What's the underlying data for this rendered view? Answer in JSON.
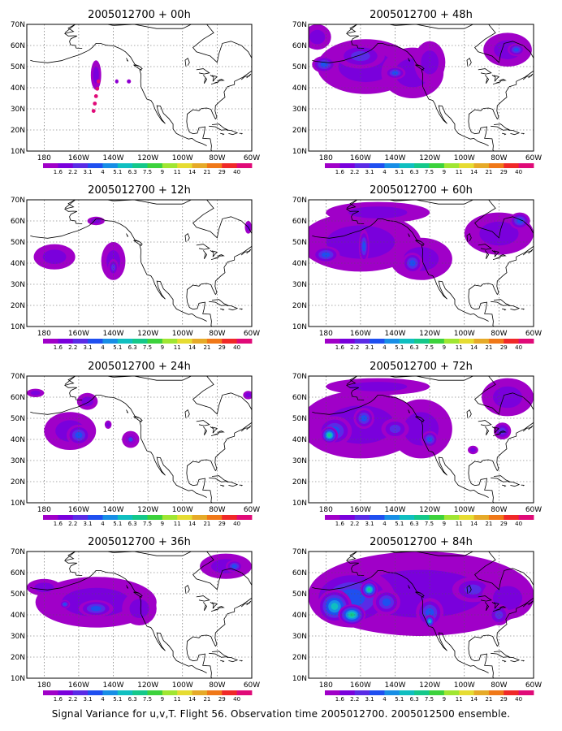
{
  "caption": "Signal Variance for u,v,T. Flight 56. Observation time 2005012700. 2005012500 ensemble.",
  "colorbar": {
    "labels": [
      "1.6",
      "2.2",
      "3.1",
      "4",
      "5.1",
      "6.3",
      "7.5",
      "9",
      "11",
      "14",
      "21",
      "29",
      "40"
    ],
    "colors": [
      "#a000c8",
      "#7a00dc",
      "#5a2be6",
      "#1f4ff0",
      "#178ee6",
      "#10bfc0",
      "#14c88a",
      "#3cd23c",
      "#a0e632",
      "#e6dc32",
      "#e6aa28",
      "#f07818",
      "#f02828",
      "#e00a78"
    ]
  },
  "chart_data": [
    {
      "type": "heatmap",
      "title": "2005012700 + 00h",
      "x_ticks": [
        "180",
        "160W",
        "140W",
        "120W",
        "100W",
        "80W",
        "60W"
      ],
      "y_ticks": [
        "10N",
        "20N",
        "30N",
        "40N",
        "50N",
        "60N",
        "70N"
      ],
      "xlim": [
        -190,
        -60
      ],
      "ylim": [
        10,
        70
      ],
      "grid": true,
      "blobs": [
        {
          "lon": -150,
          "lat": 46,
          "rlon": 3,
          "rlat": 7,
          "level": 1
        },
        {
          "lon": -150,
          "lat": 36,
          "rlon": 1.4,
          "rlat": 7,
          "level": 13
        },
        {
          "lon": -138,
          "lat": 43,
          "rlon": 1,
          "rlat": 1,
          "level": 1
        },
        {
          "lon": -131,
          "lat": 43,
          "rlon": 1.2,
          "rlat": 1,
          "level": 1
        }
      ]
    },
    {
      "type": "heatmap",
      "title": "2005012700 + 48h",
      "x_ticks": [
        "180",
        "160W",
        "140W",
        "120W",
        "100W",
        "80W",
        "60W"
      ],
      "y_ticks": [
        "10N",
        "20N",
        "30N",
        "40N",
        "50N",
        "60N",
        "70N"
      ],
      "xlim": [
        -190,
        -60
      ],
      "ylim": [
        10,
        70
      ],
      "grid": true,
      "blobs": [
        {
          "lon": -157,
          "lat": 50,
          "rlon": 28,
          "rlat": 13,
          "level": 1
        },
        {
          "lon": -130,
          "lat": 47,
          "rlon": 18,
          "rlat": 12,
          "level": 1
        },
        {
          "lon": -120,
          "lat": 52,
          "rlon": 9,
          "rlat": 10,
          "level": 1
        },
        {
          "lon": -160,
          "lat": 55,
          "rlon": 14,
          "rlat": 6,
          "level": 2
        },
        {
          "lon": -140,
          "lat": 47,
          "rlon": 6,
          "rlat": 3,
          "level": 3
        },
        {
          "lon": -181,
          "lat": 51,
          "rlon": 7,
          "rlat": 4,
          "level": 3
        },
        {
          "lon": -75,
          "lat": 58,
          "rlon": 14,
          "rlat": 8,
          "level": 1
        },
        {
          "lon": -70,
          "lat": 58,
          "rlon": 5,
          "rlat": 3,
          "level": 3
        },
        {
          "lon": -185,
          "lat": 64,
          "rlon": 8,
          "rlat": 6,
          "level": 1
        }
      ]
    },
    {
      "type": "heatmap",
      "title": "2005012700 + 12h",
      "x_ticks": [
        "180",
        "160W",
        "140W",
        "120W",
        "100W",
        "80W",
        "60W"
      ],
      "y_ticks": [
        "10N",
        "20N",
        "30N",
        "40N",
        "50N",
        "60N",
        "70N"
      ],
      "xlim": [
        -190,
        -60
      ],
      "ylim": [
        10,
        70
      ],
      "grid": true,
      "blobs": [
        {
          "lon": -174,
          "lat": 43,
          "rlon": 12,
          "rlat": 6,
          "level": 1
        },
        {
          "lon": -140,
          "lat": 41,
          "rlon": 7,
          "rlat": 9,
          "level": 1
        },
        {
          "lon": -140,
          "lat": 38,
          "rlon": 3,
          "rlat": 4,
          "level": 2
        },
        {
          "lon": -150,
          "lat": 60,
          "rlon": 5,
          "rlat": 2,
          "level": 1
        },
        {
          "lon": -62,
          "lat": 57,
          "rlon": 2,
          "rlat": 3,
          "level": 1
        }
      ]
    },
    {
      "type": "heatmap",
      "title": "2005012700 + 60h",
      "x_ticks": [
        "180",
        "160W",
        "140W",
        "120W",
        "100W",
        "80W",
        "60W"
      ],
      "y_ticks": [
        "10N",
        "20N",
        "30N",
        "40N",
        "50N",
        "60N",
        "70N"
      ],
      "xlim": [
        -190,
        -60
      ],
      "ylim": [
        10,
        70
      ],
      "grid": true,
      "blobs": [
        {
          "lon": -160,
          "lat": 50,
          "rlon": 35,
          "rlat": 14,
          "level": 1
        },
        {
          "lon": -125,
          "lat": 42,
          "rlon": 18,
          "rlat": 10,
          "level": 1
        },
        {
          "lon": -180,
          "lat": 44,
          "rlon": 8,
          "rlat": 4,
          "level": 3
        },
        {
          "lon": -158,
          "lat": 48,
          "rlon": 3,
          "rlat": 8,
          "level": 3
        },
        {
          "lon": -130,
          "lat": 40,
          "rlon": 6,
          "rlat": 5,
          "level": 3
        },
        {
          "lon": -80,
          "lat": 54,
          "rlon": 20,
          "rlat": 10,
          "level": 1
        },
        {
          "lon": -68,
          "lat": 60,
          "rlon": 6,
          "rlat": 4,
          "level": 3
        },
        {
          "lon": -150,
          "lat": 64,
          "rlon": 30,
          "rlat": 5,
          "level": 1
        }
      ]
    },
    {
      "type": "heatmap",
      "title": "2005012700 + 24h",
      "x_ticks": [
        "180",
        "160W",
        "140W",
        "120W",
        "100W",
        "80W",
        "60W"
      ],
      "y_ticks": [
        "10N",
        "20N",
        "30N",
        "40N",
        "50N",
        "60N",
        "70N"
      ],
      "xlim": [
        -190,
        -60
      ],
      "ylim": [
        10,
        70
      ],
      "grid": true,
      "blobs": [
        {
          "lon": -165,
          "lat": 44,
          "rlon": 15,
          "rlat": 9,
          "level": 1
        },
        {
          "lon": -160,
          "lat": 42,
          "rlon": 7,
          "rlat": 5,
          "level": 3
        },
        {
          "lon": -130,
          "lat": 40,
          "rlon": 5,
          "rlat": 4,
          "level": 1
        },
        {
          "lon": -130,
          "lat": 40,
          "rlon": 2.5,
          "rlat": 2,
          "level": 3
        },
        {
          "lon": -143,
          "lat": 47,
          "rlon": 2,
          "rlat": 2,
          "level": 1
        },
        {
          "lon": -155,
          "lat": 58,
          "rlon": 6,
          "rlat": 4,
          "level": 1
        },
        {
          "lon": -185,
          "lat": 62,
          "rlon": 5,
          "rlat": 2,
          "level": 1
        },
        {
          "lon": -62,
          "lat": 61,
          "rlon": 3,
          "rlat": 2,
          "level": 1
        }
      ]
    },
    {
      "type": "heatmap",
      "title": "2005012700 + 72h",
      "x_ticks": [
        "180",
        "160W",
        "140W",
        "120W",
        "100W",
        "80W",
        "60W"
      ],
      "y_ticks": [
        "10N",
        "20N",
        "30N",
        "40N",
        "50N",
        "60N",
        "70N"
      ],
      "xlim": [
        -190,
        -60
      ],
      "ylim": [
        10,
        70
      ],
      "grid": true,
      "blobs": [
        {
          "lon": -160,
          "lat": 47,
          "rlon": 35,
          "rlat": 16,
          "level": 1
        },
        {
          "lon": -125,
          "lat": 45,
          "rlon": 18,
          "rlat": 14,
          "level": 1
        },
        {
          "lon": -175,
          "lat": 44,
          "rlon": 10,
          "rlat": 7,
          "level": 3
        },
        {
          "lon": -178,
          "lat": 42,
          "rlon": 5,
          "rlat": 4,
          "level": 6
        },
        {
          "lon": -158,
          "lat": 50,
          "rlon": 6,
          "rlat": 5,
          "level": 3
        },
        {
          "lon": -140,
          "lat": 45,
          "rlon": 8,
          "rlat": 5,
          "level": 2
        },
        {
          "lon": -120,
          "lat": 40,
          "rlon": 5,
          "rlat": 4,
          "level": 3
        },
        {
          "lon": -95,
          "lat": 35,
          "rlon": 3,
          "rlat": 2,
          "level": 1
        },
        {
          "lon": -75,
          "lat": 60,
          "rlon": 15,
          "rlat": 9,
          "level": 1
        },
        {
          "lon": -78,
          "lat": 44,
          "rlon": 5,
          "rlat": 4,
          "level": 2
        },
        {
          "lon": -150,
          "lat": 65,
          "rlon": 30,
          "rlat": 4,
          "level": 1
        }
      ]
    },
    {
      "type": "heatmap",
      "title": "2005012700 + 36h",
      "x_ticks": [
        "180",
        "160W",
        "140W",
        "120W",
        "100W",
        "80W",
        "60W"
      ],
      "y_ticks": [
        "10N",
        "20N",
        "30N",
        "40N",
        "50N",
        "60N",
        "70N"
      ],
      "xlim": [
        -190,
        -60
      ],
      "ylim": [
        10,
        70
      ],
      "grid": true,
      "blobs": [
        {
          "lon": -150,
          "lat": 46,
          "rlon": 35,
          "rlat": 12,
          "level": 1
        },
        {
          "lon": -125,
          "lat": 43,
          "rlon": 10,
          "rlat": 8,
          "level": 1
        },
        {
          "lon": -150,
          "lat": 43,
          "rlon": 10,
          "rlat": 4,
          "level": 3
        },
        {
          "lon": -180,
          "lat": 53,
          "rlon": 10,
          "rlat": 4,
          "level": 1
        },
        {
          "lon": -75,
          "lat": 63,
          "rlon": 15,
          "rlat": 6,
          "level": 1
        },
        {
          "lon": -70,
          "lat": 63,
          "rlon": 5,
          "rlat": 3,
          "level": 3
        },
        {
          "lon": -168,
          "lat": 45,
          "rlon": 3,
          "rlat": 2,
          "level": 3
        }
      ]
    },
    {
      "type": "heatmap",
      "title": "2005012700 + 84h",
      "x_ticks": [
        "180",
        "160W",
        "140W",
        "120W",
        "100W",
        "80W",
        "60W"
      ],
      "y_ticks": [
        "10N",
        "20N",
        "30N",
        "40N",
        "50N",
        "60N",
        "70N"
      ],
      "xlim": [
        -190,
        -60
      ],
      "ylim": [
        10,
        70
      ],
      "grid": true,
      "blobs": [
        {
          "lon": -125,
          "lat": 50,
          "rlon": 65,
          "rlat": 20,
          "level": 1
        },
        {
          "lon": -165,
          "lat": 48,
          "rlon": 25,
          "rlat": 14,
          "level": 3
        },
        {
          "lon": -175,
          "lat": 44,
          "rlon": 10,
          "rlat": 8,
          "level": 5
        },
        {
          "lon": -165,
          "lat": 40,
          "rlon": 8,
          "rlat": 5,
          "level": 6
        },
        {
          "lon": -155,
          "lat": 52,
          "rlon": 5,
          "rlat": 4,
          "level": 6
        },
        {
          "lon": -145,
          "lat": 46,
          "rlon": 8,
          "rlat": 6,
          "level": 3
        },
        {
          "lon": -120,
          "lat": 41,
          "rlon": 8,
          "rlat": 7,
          "level": 3
        },
        {
          "lon": -120,
          "lat": 37,
          "rlon": 3,
          "rlat": 3,
          "level": 5
        },
        {
          "lon": -95,
          "lat": 52,
          "rlon": 12,
          "rlat": 6,
          "level": 2
        },
        {
          "lon": -75,
          "lat": 48,
          "rlon": 15,
          "rlat": 10,
          "level": 1
        },
        {
          "lon": -80,
          "lat": 40,
          "rlon": 6,
          "rlat": 5,
          "level": 2
        }
      ]
    }
  ]
}
